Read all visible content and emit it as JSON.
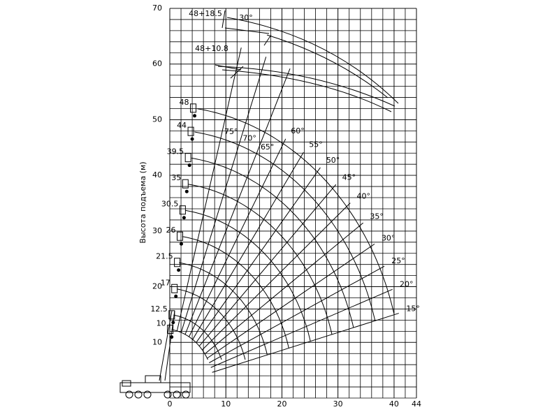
{
  "chart_data": {
    "type": "crane-range",
    "y_label": "Высота подъема (м)",
    "xlim": [
      0,
      44
    ],
    "xticks": [
      0,
      10,
      20,
      30,
      40,
      44
    ],
    "ylim": [
      0,
      70
    ],
    "yticks": [
      10,
      20,
      30,
      40,
      50,
      60,
      70
    ],
    "grid": true,
    "boom_lengths": [
      10,
      12.5,
      17,
      21.5,
      26,
      30.5,
      35,
      39.5,
      44,
      48
    ],
    "jib_labels": [
      "48+10.8",
      "48+18.5"
    ],
    "jib_angle_label": "30°",
    "angles": [
      {
        "value": 75,
        "label": "75°"
      },
      {
        "value": 70,
        "label": "70°"
      },
      {
        "value": 65,
        "label": "65°"
      },
      {
        "value": 60,
        "label": "60°"
      },
      {
        "value": 55,
        "label": "55°"
      },
      {
        "value": 50,
        "label": "50°"
      },
      {
        "value": 45,
        "label": "45°"
      },
      {
        "value": 40,
        "label": "40°"
      },
      {
        "value": 35,
        "label": "35°"
      },
      {
        "value": 30,
        "label": "30°"
      },
      {
        "value": 25,
        "label": "25°"
      },
      {
        "value": 20,
        "label": "20°"
      },
      {
        "value": 15,
        "label": "15°"
      }
    ],
    "color": "#000000"
  }
}
